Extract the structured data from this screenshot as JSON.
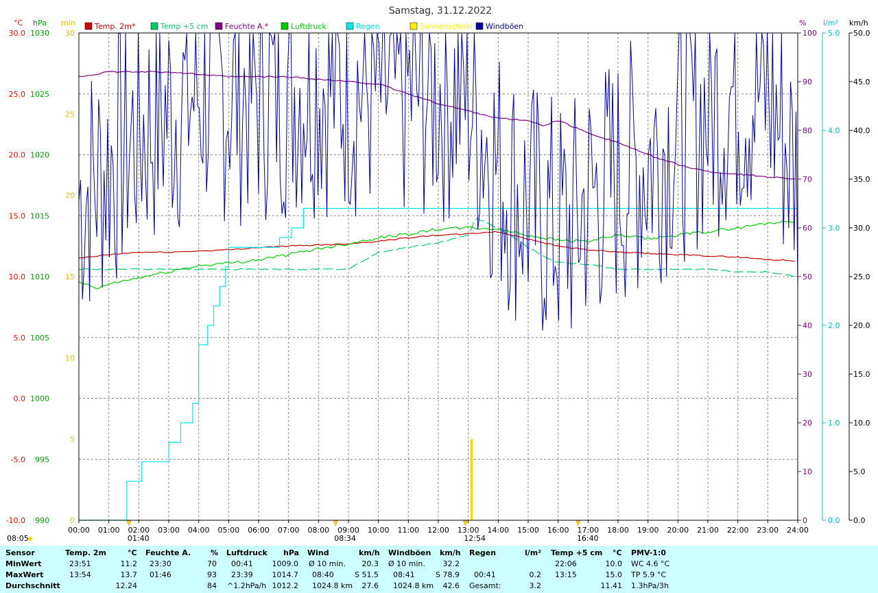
{
  "chart_data": {
    "type": "line",
    "title": "Samstag, 31.12.2022",
    "x_ticks": [
      "00:00",
      "01:00",
      "02:00",
      "03:00",
      "04:00",
      "05:00",
      "06:00",
      "07:00",
      "08:00",
      "09:00",
      "10:00",
      "11:00",
      "12:00",
      "13:00",
      "14:00",
      "15:00",
      "16:00",
      "17:00",
      "18:00",
      "19:00",
      "20:00",
      "21:00",
      "22:00",
      "23:00",
      "24:00"
    ],
    "axes": {
      "temp": {
        "unit": "°C",
        "range": [
          -10,
          30
        ],
        "ticks": [
          "30.0",
          "25.0",
          "20.0",
          "15.0",
          "10.0",
          "5.0",
          "0.0",
          "-5.0",
          "-10.0"
        ],
        "color": "#ff0000"
      },
      "pressure": {
        "unit": "hPa",
        "range": [
          990,
          1030
        ],
        "ticks": [
          "1030",
          "1025",
          "1020",
          "1015",
          "1010",
          "1005",
          "1000",
          "995",
          "990"
        ],
        "color": "#00a000"
      },
      "sunshine": {
        "unit": "min",
        "range": [
          0,
          30
        ],
        "ticks": [
          "30",
          "25",
          "20",
          "15",
          "10",
          "5",
          "0"
        ],
        "color": "#e0c000"
      },
      "humidity": {
        "unit": "%",
        "range": [
          0,
          100
        ],
        "ticks": [
          "100",
          "90",
          "80",
          "70",
          "60",
          "50",
          "40",
          "30",
          "20",
          "10",
          "0"
        ],
        "color": "#800080"
      },
      "rain": {
        "unit": "l/m²",
        "range": [
          0,
          5
        ],
        "ticks": [
          "5.0",
          "4.0",
          "3.0",
          "2.0",
          "1.0",
          "0.0"
        ],
        "color": "#00c0c0"
      },
      "wind": {
        "unit": "km/h",
        "range": [
          0,
          50
        ],
        "ticks": [
          "50.0",
          "45.0",
          "40.0",
          "35.0",
          "30.0",
          "25.0",
          "20.0",
          "15.0",
          "10.0",
          "5.0",
          "0.0"
        ],
        "color": "#000080"
      }
    },
    "legend": [
      {
        "label": "Temp. 2m*",
        "color": "#cc0000"
      },
      {
        "label": "Temp +5 cm",
        "color": "#00cc66"
      },
      {
        "label": "Feuchte A.*",
        "color": "#800080"
      },
      {
        "label": "Luftdruck",
        "color": "#00cc00"
      },
      {
        "label": "Regen",
        "color": "#00e5e5"
      },
      {
        "label": "Sonnenschein",
        "color": "#ffee00"
      },
      {
        "label": "Windböen",
        "color": "#000099"
      }
    ],
    "series": [
      {
        "name": "Temp. 2m*",
        "axis": "temp",
        "color": "#cc0000",
        "x": [
          0,
          1,
          2,
          3,
          4,
          5,
          6,
          7,
          8,
          9,
          10,
          11,
          12,
          13,
          13.9,
          15,
          16,
          17,
          18,
          19,
          20,
          21,
          22,
          23,
          24
        ],
        "y": [
          11.5,
          11.8,
          12.0,
          12.0,
          12.1,
          12.2,
          12.4,
          12.5,
          12.6,
          12.7,
          12.9,
          13.2,
          13.4,
          13.5,
          13.7,
          13.1,
          12.5,
          12.2,
          12.0,
          11.9,
          11.8,
          11.7,
          11.6,
          11.4,
          11.3
        ]
      },
      {
        "name": "Temp +5 cm",
        "axis": "temp",
        "color": "#00cc66",
        "x": [
          0,
          1,
          2,
          3,
          4,
          5,
          6,
          7,
          8,
          9,
          10,
          11,
          12,
          13,
          13.25,
          14,
          15,
          15.9,
          17,
          18,
          19,
          20,
          21,
          22,
          23,
          24
        ],
        "y": [
          10.6,
          10.6,
          10.6,
          10.6,
          10.6,
          10.6,
          10.6,
          10.6,
          10.6,
          10.6,
          12.0,
          12.4,
          12.8,
          13.4,
          14.8,
          14.0,
          12.4,
          11.2,
          11.0,
          10.6,
          10.6,
          10.6,
          10.6,
          10.4,
          10.4,
          10.0
        ]
      },
      {
        "name": "Feuchte A.*",
        "axis": "humidity",
        "color": "#800080",
        "x": [
          0,
          1,
          2,
          3,
          4,
          5,
          6,
          7,
          8,
          9,
          10,
          11,
          12,
          13,
          14,
          15,
          15.5,
          16,
          17,
          18,
          19,
          20,
          21,
          22,
          23,
          24
        ],
        "y": [
          91,
          92,
          92,
          92,
          91.5,
          91,
          91,
          91,
          90.5,
          90,
          89.5,
          87.5,
          85.5,
          84,
          82.5,
          82,
          81,
          82,
          79.5,
          77.5,
          75,
          73,
          71.5,
          71,
          70.5,
          70
        ]
      },
      {
        "name": "Luftdruck",
        "axis": "pressure",
        "color": "#00cc00",
        "x": [
          0,
          0.67,
          1,
          2,
          3,
          4,
          5,
          6,
          7,
          8,
          9,
          10,
          11,
          12,
          13,
          14,
          15,
          16,
          17,
          18,
          19,
          20,
          21,
          22,
          23,
          24
        ],
        "y": [
          1009.5,
          1009.0,
          1009.4,
          1009.9,
          1010.4,
          1010.9,
          1011.1,
          1011.4,
          1011.8,
          1012.3,
          1012.7,
          1013.2,
          1013.5,
          1013.9,
          1014.0,
          1013.9,
          1013.4,
          1013.0,
          1012.9,
          1013.4,
          1013.1,
          1013.4,
          1013.7,
          1014.0,
          1014.4,
          1014.6
        ]
      },
      {
        "name": "Regen",
        "axis": "rain",
        "color": "#00e5e5",
        "x": [
          0,
          0.68,
          1.3,
          1.6,
          2.1,
          3.0,
          3.4,
          3.8,
          4.0,
          4.3,
          4.5,
          4.7,
          4.9,
          5.0,
          5.2,
          6.5,
          6.7,
          7.1,
          7.5,
          24
        ],
        "y": [
          0,
          0,
          0,
          0.4,
          0.6,
          0.8,
          1.0,
          1.2,
          1.8,
          2.0,
          2.2,
          2.4,
          2.6,
          2.8,
          2.8,
          2.8,
          2.9,
          3.0,
          3.2,
          3.2
        ]
      },
      {
        "name": "Windböen",
        "axis": "wind",
        "color": "#000099",
        "style": "gust",
        "x": [
          0,
          2,
          4,
          6,
          8,
          10,
          12,
          13,
          14,
          15,
          16,
          16.5,
          17,
          18,
          19,
          20,
          21,
          22,
          23,
          24
        ],
        "y": [
          33,
          40,
          44,
          44,
          45,
          44,
          44,
          44,
          36,
          32,
          30,
          30,
          33,
          35,
          37,
          40,
          42,
          44,
          44,
          35
        ]
      }
    ],
    "sunshine_events": [
      {
        "x": 13.1,
        "y": 5
      }
    ],
    "markers": [
      {
        "label": "08:05",
        "x": 0,
        "kind": "sunrise-date"
      },
      {
        "label": "01:40",
        "x": 1.67
      },
      {
        "label": "08:34",
        "x": 8.57
      },
      {
        "label": "12:54",
        "x": 12.9
      },
      {
        "label": "16:40",
        "x": 16.67
      }
    ]
  },
  "stats": {
    "headers": {
      "sensor": "Sensor",
      "temp": "Temp. 2m",
      "temp_unit": "°C",
      "hum": "Feuchte A.",
      "hum_unit": "%",
      "press": "Luftdruck",
      "press_unit": "hPa",
      "wind": "Wind",
      "wind_unit": "km/h",
      "gust": "Windböen",
      "gust_unit": "km/h",
      "rain": "Regen",
      "rain_unit": "l/m²",
      "t5": "Temp +5 cm",
      "t5_unit": "°C",
      "pmv": "PMV-1:0"
    },
    "min": {
      "label": "MinWert",
      "temp_time": "23:51",
      "temp_val": "11.2",
      "hum_time": "23:30",
      "hum_val": "70",
      "press_time": "00:41",
      "press_val": "1009.0",
      "wind_lbl": "Ø 10 min.",
      "wind_val": "20.3",
      "gust_lbl": "Ø 10 min.",
      "gust_val": "32.2",
      "t5_time": "22:06",
      "t5_val": "10.0",
      "pmv": "WC 4.6 °C"
    },
    "max": {
      "label": "MaxWert",
      "temp_time": "13:54",
      "temp_val": "13.7",
      "hum_time": "01:46",
      "hum_val": "93",
      "press_time": "23:39",
      "press_val": "1014.7",
      "wind_time": "08:40",
      "wind_val": "S 51.5",
      "gust_time": "08:41",
      "gust_val": "S 78.9",
      "rain_time": "00:41",
      "rain_val": "0.2",
      "t5_time": "13:15",
      "t5_val": "15.0",
      "pmv": "TP 5.9 °C"
    },
    "avg": {
      "label": "Durchschnitt",
      "temp_val": "12.24",
      "hum_val": "84",
      "press_lbl": "^1.2hPa/h",
      "press_val": "1012.2",
      "wind_lbl": "1024.8 km",
      "wind_val": "27.6",
      "gust_lbl": "1024.8 km",
      "gust_val": "42.6",
      "rain_lbl": "Gesamt:",
      "rain_val": "3.2",
      "t5_val": "11.41",
      "pmv": "1.3hPa/3h"
    }
  }
}
